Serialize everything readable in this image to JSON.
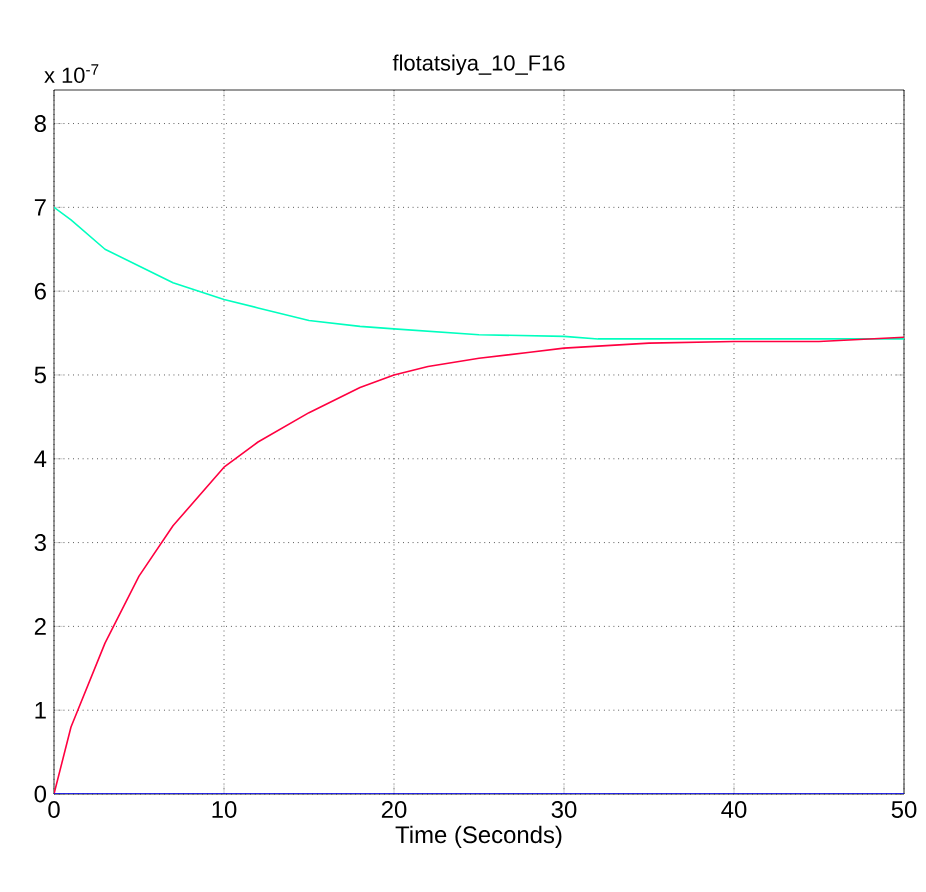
{
  "chart_data": {
    "type": "line",
    "title": "flotatsiya_10_F16",
    "xlabel": "Time (Seconds)",
    "annotations": [
      "x 10$^{-7}$"
    ],
    "xlim": [
      0,
      50
    ],
    "xticks": [
      0,
      10,
      20,
      30,
      40,
      50
    ],
    "ylim": [
      0,
      8.4
    ],
    "yticks": [
      0,
      1,
      2,
      3,
      4,
      5,
      6,
      7,
      8
    ],
    "grid": true,
    "series": [
      {
        "color": "#00ffbf",
        "x": [
          0,
          1,
          3,
          5,
          7,
          10,
          12,
          15,
          18,
          20,
          25,
          30,
          32,
          40,
          50
        ],
        "values": [
          7.0,
          6.85,
          6.5,
          6.3,
          6.1,
          5.9,
          5.8,
          5.65,
          5.58,
          5.55,
          5.48,
          5.46,
          5.43,
          5.43,
          5.43
        ]
      },
      {
        "color": "#ff0040",
        "x": [
          0,
          1,
          3,
          5,
          7,
          10,
          12,
          15,
          18,
          20,
          22,
          25,
          28,
          30,
          35,
          40,
          45,
          50
        ],
        "values": [
          0,
          0.8,
          1.8,
          2.6,
          3.2,
          3.9,
          4.2,
          4.55,
          4.85,
          5.0,
          5.1,
          5.2,
          5.27,
          5.32,
          5.38,
          5.4,
          5.4,
          5.45
        ]
      },
      {
        "color": "#0000ff",
        "x": [
          0,
          50
        ],
        "values": [
          0,
          0
        ]
      }
    ]
  }
}
